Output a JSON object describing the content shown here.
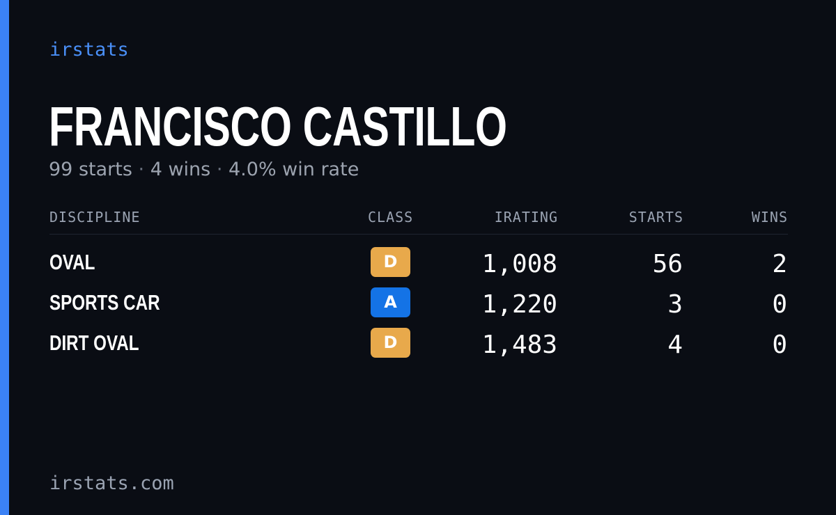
{
  "brand": "irstats",
  "player": {
    "name": "FRANCISCO CASTILLO",
    "starts_text": "99 starts",
    "wins_text": "4 wins",
    "winrate_text": "4.0% win rate",
    "separator": "·"
  },
  "table": {
    "headers": {
      "discipline": "DISCIPLINE",
      "class": "CLASS",
      "irating": "IRATING",
      "starts": "STARTS",
      "wins": "WINS"
    },
    "rows": [
      {
        "discipline": "OVAL",
        "class": "D",
        "class_color": "#e8a94b",
        "irating": "1,008",
        "starts": "56",
        "wins": "2"
      },
      {
        "discipline": "SPORTS CAR",
        "class": "A",
        "class_color": "#1473e6",
        "irating": "1,220",
        "starts": "3",
        "wins": "0"
      },
      {
        "discipline": "DIRT OVAL",
        "class": "D",
        "class_color": "#e8a94b",
        "irating": "1,483",
        "starts": "4",
        "wins": "0"
      }
    ]
  },
  "footer": {
    "url": "irstats.com"
  },
  "colors": {
    "accent": "#3b82f6",
    "background": "#0a0d14",
    "brand": "#4a8ff7",
    "muted": "#9ca3af"
  }
}
